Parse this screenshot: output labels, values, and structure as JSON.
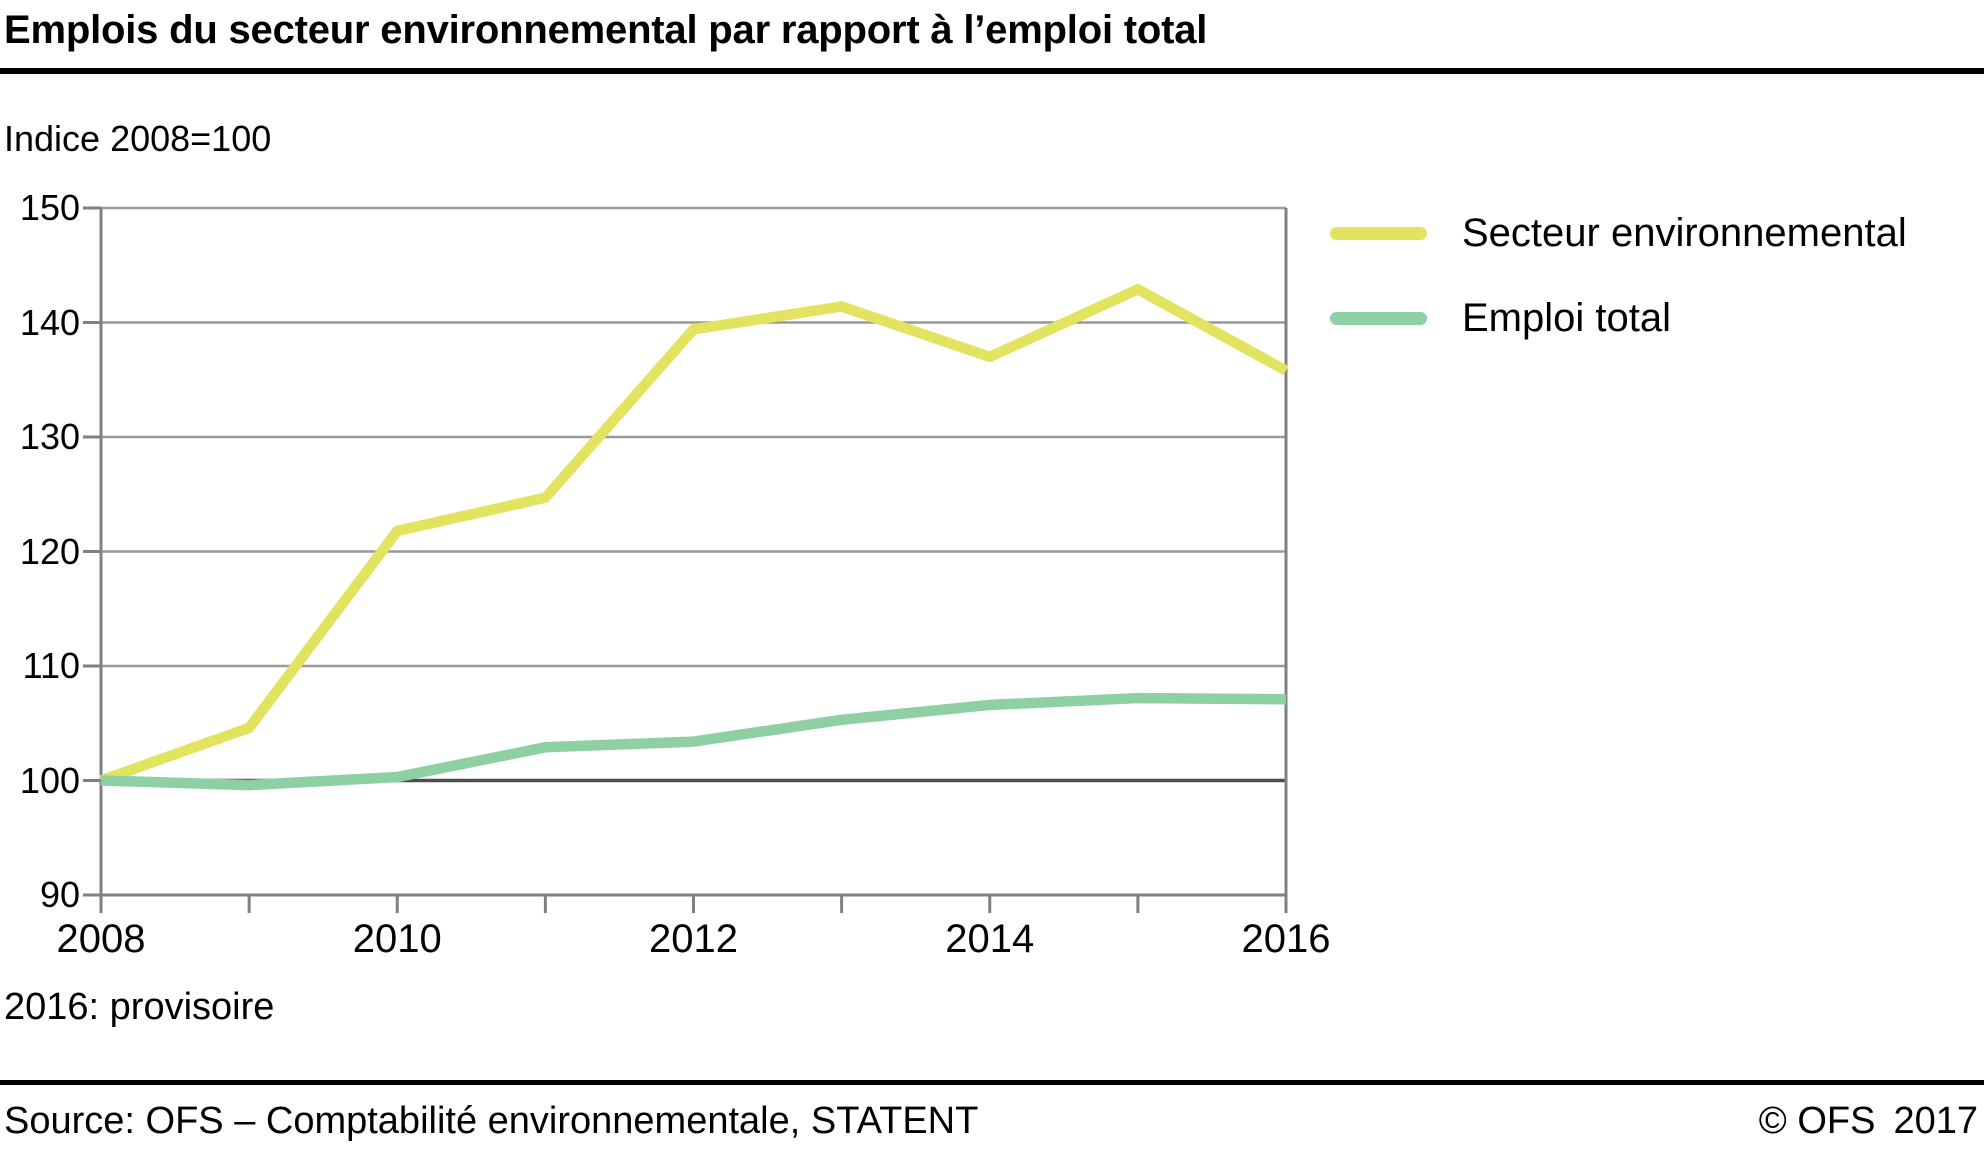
{
  "header": {
    "title": "Emplois du secteur environnemental par rapport à l’emploi total",
    "unit_label": "Indice 2008=100"
  },
  "footer": {
    "note": "2016: provisoire",
    "source": "Source: OFS – Comptabilité environnementale, STATENT",
    "copyright": "© OFS",
    "copyright_year": "2017"
  },
  "chart_data": {
    "type": "line",
    "title": "Emplois du secteur environnemental par rapport à l’emploi total",
    "unit_label": "Indice 2008=100",
    "x": [
      2008,
      2009,
      2010,
      2011,
      2012,
      2013,
      2014,
      2015,
      2016
    ],
    "x_labeled_ticks": [
      2008,
      2010,
      2012,
      2014,
      2016
    ],
    "series": [
      {
        "name": "Secteur environnemental",
        "color": "#e2e45f",
        "values": [
          100,
          104.6,
          121.8,
          124.7,
          139.4,
          141.4,
          137.0,
          142.9,
          135.8
        ]
      },
      {
        "name": "Emploi total",
        "color": "#8fcfa4",
        "values": [
          100,
          99.6,
          100.3,
          102.9,
          103.4,
          105.3,
          106.6,
          107.2,
          107.1
        ]
      }
    ],
    "xlim": [
      2008,
      2016
    ],
    "ylim": [
      90,
      150
    ],
    "y_step": 10,
    "baseline": 100,
    "grid": "horizontal",
    "legend_position": "right",
    "colors": {
      "gridline": "#999999",
      "axis": "#808080",
      "baseline_line": "#4d4d4d",
      "text": "#000000"
    }
  }
}
